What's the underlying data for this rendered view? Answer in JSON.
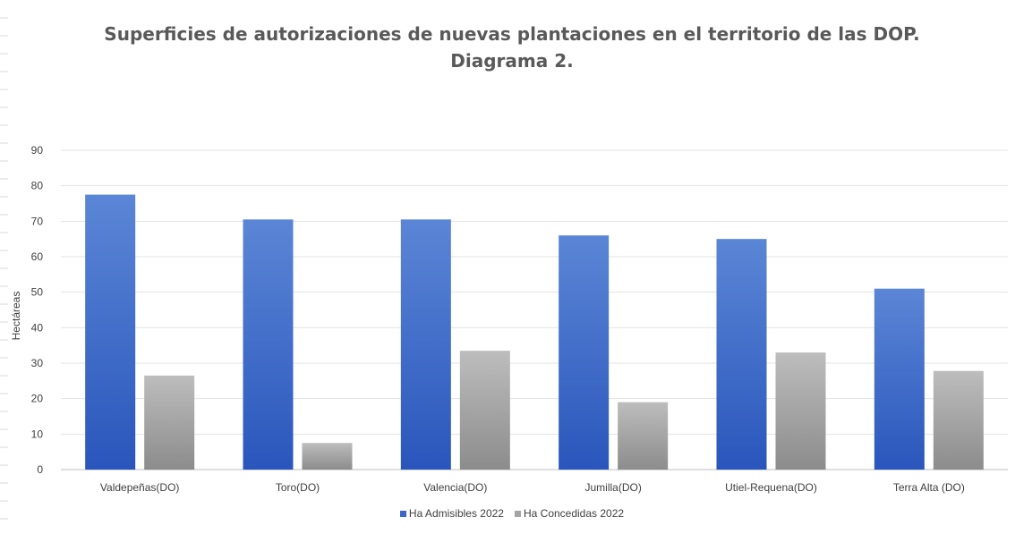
{
  "chart_data": {
    "type": "bar",
    "title": "Superficies de autorizaciones de nuevas plantaciones en el territorio de las DOP.",
    "subtitle": "Diagrama 2.",
    "xlabel": "",
    "ylabel": "Hectáreas",
    "ylim": [
      0,
      90
    ],
    "yticks": [
      0,
      10,
      20,
      30,
      40,
      50,
      60,
      70,
      80,
      90
    ],
    "categories": [
      "Valdepeñas(DO)",
      "Toro(DO)",
      "Valencia(DO)",
      "Jumilla(DO)",
      "Utiel-Requena(DO)",
      "Terra Alta (DO)"
    ],
    "series": [
      {
        "name": "Ha Admisibles 2022",
        "color": "#3a68c8",
        "values": [
          77.5,
          70.5,
          70.5,
          66,
          65,
          51
        ]
      },
      {
        "name": "Ha Concedidas 2022",
        "color": "#a5a5a5",
        "values": [
          26.5,
          7.5,
          33.5,
          19,
          33,
          27.8
        ]
      }
    ],
    "grid": true,
    "legend_position": "bottom"
  }
}
